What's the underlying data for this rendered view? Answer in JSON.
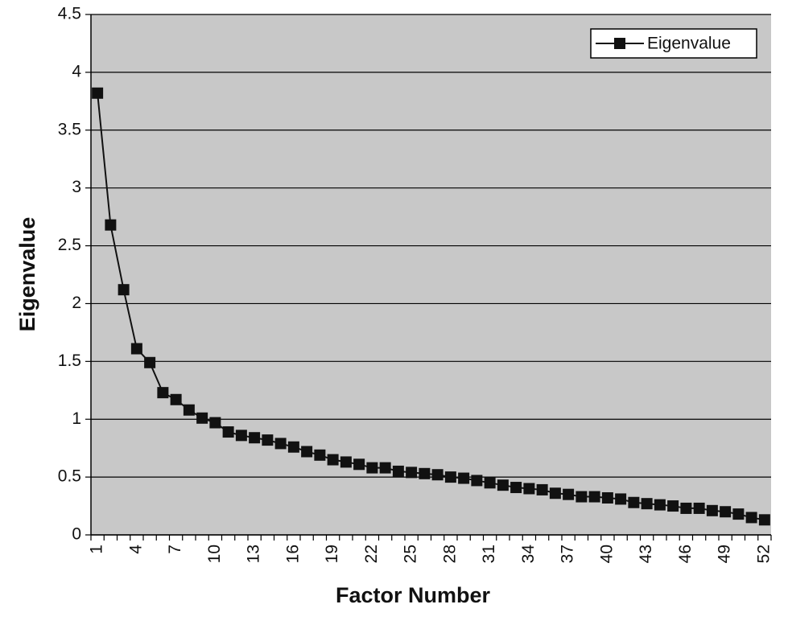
{
  "chart_data": {
    "type": "line",
    "x_label": "Factor Number",
    "y_label": "Eigenvalue",
    "categories": [
      "1",
      null,
      null,
      "4",
      null,
      null,
      "7",
      null,
      null,
      "10",
      null,
      null,
      "13",
      null,
      null,
      "16",
      null,
      null,
      "19",
      null,
      null,
      "22",
      null,
      null,
      "25",
      null,
      null,
      "28",
      null,
      null,
      "31",
      null,
      null,
      "34",
      null,
      null,
      "37",
      null,
      null,
      "40",
      null,
      null,
      "43",
      null,
      null,
      "46",
      null,
      null,
      "49",
      null,
      null,
      "52"
    ],
    "series": [
      {
        "name": "Eigenvalue",
        "color": "#111111",
        "values": [
          3.82,
          2.68,
          2.12,
          1.61,
          1.49,
          1.23,
          1.17,
          1.08,
          1.01,
          0.97,
          0.89,
          0.86,
          0.84,
          0.82,
          0.79,
          0.76,
          0.72,
          0.69,
          0.65,
          0.63,
          0.61,
          0.58,
          0.58,
          0.55,
          0.54,
          0.53,
          0.52,
          0.5,
          0.49,
          0.47,
          0.45,
          0.43,
          0.41,
          0.4,
          0.39,
          0.36,
          0.35,
          0.33,
          0.33,
          0.32,
          0.31,
          0.28,
          0.27,
          0.26,
          0.25,
          0.23,
          0.23,
          0.21,
          0.2,
          0.18,
          0.15,
          0.13
        ]
      }
    ],
    "ylim": [
      0,
      4.5
    ],
    "yticks": [
      0,
      0.5,
      1,
      1.5,
      2,
      2.5,
      3,
      3.5,
      4,
      4.5
    ],
    "grid": true,
    "legend": "top-right",
    "plot_background": "#c8c8c8"
  }
}
